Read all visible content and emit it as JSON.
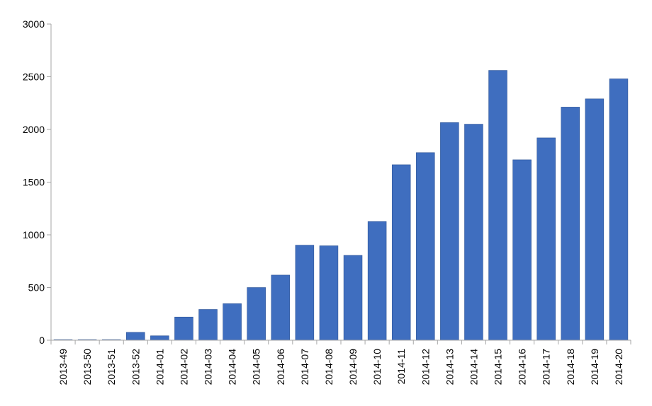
{
  "chart_data": {
    "type": "bar",
    "title": "",
    "xlabel": "",
    "ylabel": "",
    "ylim": [
      0,
      3000
    ],
    "yticks": [
      "0",
      "500",
      "1000",
      "1500",
      "2000",
      "2500",
      "3000"
    ],
    "grid": false,
    "legend": "none",
    "bar_color": "#3f6ebf",
    "categories": [
      "2013-49",
      "2013-50",
      "2013-51",
      "2013-52",
      "2014-01",
      "2014-02",
      "2014-03",
      "2014-04",
      "2014-05",
      "2014-06",
      "2014-07",
      "2014-08",
      "2014-09",
      "2014-10",
      "2014-11",
      "2014-12",
      "2014-13",
      "2014-14",
      "2014-15",
      "2014-16",
      "2014-17",
      "2014-18",
      "2014-19",
      "2014-20"
    ],
    "values": [
      1,
      2,
      3,
      75,
      42,
      220,
      292,
      347,
      500,
      618,
      902,
      896,
      805,
      1126,
      1665,
      1780,
      2065,
      2050,
      2560,
      1712,
      1920,
      2212,
      2290,
      2480
    ]
  }
}
